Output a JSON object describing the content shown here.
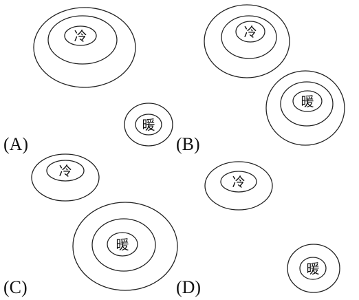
{
  "options": [
    {
      "label": "(A)",
      "masses": [
        {
          "name": "cold",
          "text": "冷",
          "rings": 3
        },
        {
          "name": "warm",
          "text": "暖",
          "rings": 2
        }
      ]
    },
    {
      "label": "(B)",
      "masses": [
        {
          "name": "cold",
          "text": "冷",
          "rings": 3
        },
        {
          "name": "warm",
          "text": "暖",
          "rings": 3
        }
      ]
    },
    {
      "label": "(C)",
      "masses": [
        {
          "name": "cold",
          "text": "冷",
          "rings": 2
        },
        {
          "name": "warm",
          "text": "暖",
          "rings": 3
        }
      ]
    },
    {
      "label": "(D)",
      "masses": [
        {
          "name": "cold",
          "text": "冷",
          "rings": 2
        },
        {
          "name": "warm",
          "text": "暖",
          "rings": 2
        }
      ]
    }
  ]
}
